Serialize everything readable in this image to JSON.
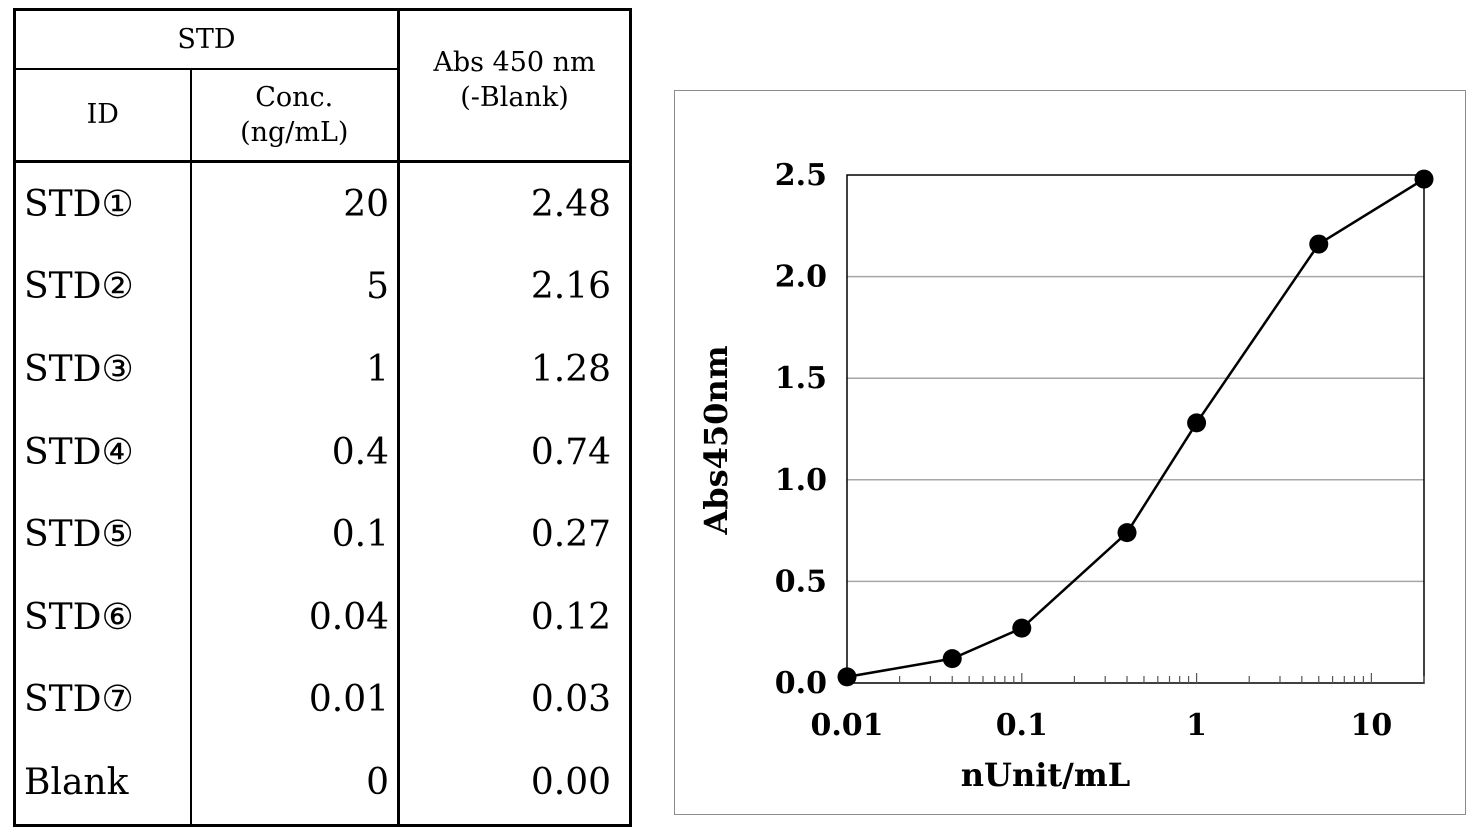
{
  "table": {
    "header_group": "STD",
    "header_id": "ID",
    "header_conc_line1": "Conc.",
    "header_conc_line2": "(ng/mL)",
    "header_abs_line1": "Abs 450 nm",
    "header_abs_line2": "(-Blank)",
    "rows": [
      {
        "id": "STD①",
        "conc": "20",
        "abs": "2.48"
      },
      {
        "id": "STD②",
        "conc": "5",
        "abs": "2.16"
      },
      {
        "id": "STD③",
        "conc": "1",
        "abs": "1.28"
      },
      {
        "id": "STD④",
        "conc": "0.4",
        "abs": "0.74"
      },
      {
        "id": "STD⑤",
        "conc": "0.1",
        "abs": "0.27"
      },
      {
        "id": "STD⑥",
        "conc": "0.04",
        "abs": "0.12"
      },
      {
        "id": "STD⑦",
        "conc": "0.01",
        "abs": "0.03"
      },
      {
        "id": "Blank",
        "conc": "0",
        "abs": "0.00"
      }
    ]
  },
  "chart_data": {
    "type": "line",
    "title": "",
    "xlabel": "nUnit/mL",
    "ylabel": "Abs450nm",
    "x_scale": "log",
    "xlim": [
      0.01,
      20
    ],
    "ylim": [
      0,
      2.5
    ],
    "x_ticks": [
      0.01,
      0.1,
      1,
      10
    ],
    "x_tick_labels": [
      "0.01",
      "0.1",
      "1",
      "10"
    ],
    "y_ticks": [
      0,
      0.5,
      1,
      1.5,
      2,
      2.5
    ],
    "y_tick_labels": [
      "0.0",
      "0.5",
      "1.0",
      "1.5",
      "2.0",
      "2.5"
    ],
    "grid": "horizontal",
    "legend": "none",
    "series": [
      {
        "x": [
          0.01,
          0.04,
          0.1,
          0.4,
          1,
          5,
          20
        ],
        "y": [
          0.03,
          0.12,
          0.27,
          0.74,
          1.28,
          2.16,
          2.48
        ]
      }
    ],
    "colors": {
      "line": "#000000",
      "marker": "#000000",
      "grid": "#a6a6a6",
      "frame": "#000000"
    }
  }
}
